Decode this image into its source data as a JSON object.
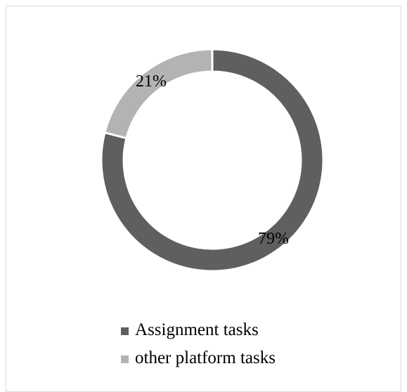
{
  "chart_data": {
    "type": "pie",
    "style": "donut",
    "categories": [
      "Assignment tasks",
      "other platform tasks"
    ],
    "values": [
      79,
      21
    ],
    "labels": [
      "79%",
      "21%"
    ],
    "colors": [
      "#5f5f5f",
      "#b3b3b3"
    ],
    "legend_position": "bottom",
    "title": ""
  },
  "legend": {
    "items": [
      {
        "label": "Assignment tasks",
        "color": "#5f5f5f"
      },
      {
        "label": "other platform tasks",
        "color": "#b3b3b3"
      }
    ]
  }
}
